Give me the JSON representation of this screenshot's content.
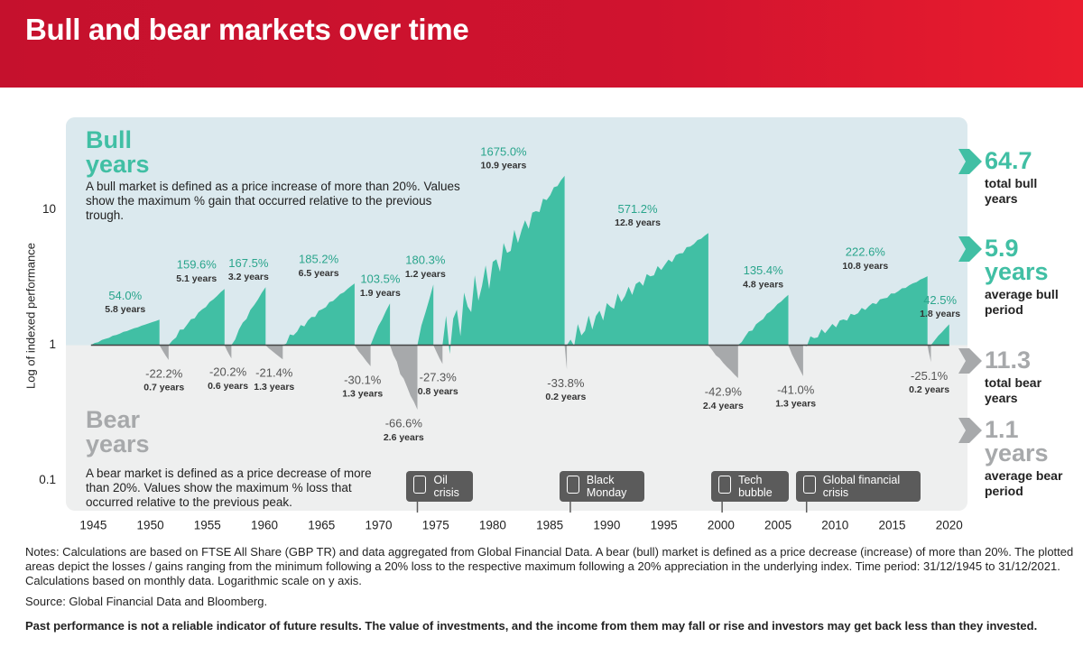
{
  "chart_data": {
    "type": "area",
    "title": "Bull and bear markets over time",
    "y_label": "Log of indexed performance",
    "log_scale": true,
    "xlim": [
      1942.6,
      2021.6
    ],
    "xticks": [
      1945,
      1950,
      1955,
      1960,
      1965,
      1970,
      1975,
      1980,
      1985,
      1990,
      1995,
      2000,
      2005,
      2010,
      2015,
      2020
    ],
    "ylim": [
      0.06,
      48
    ],
    "yticks": [
      0.1,
      1,
      10
    ],
    "series": [
      {
        "name": "Bull years",
        "color": "#41bfa4",
        "description": "A bull market is defined as a price increase of more than 20%. Values show the maximum % gain that occurred relative to the previous trough.",
        "values": [
          1.54,
          2.596,
          2.675,
          2.852,
          2.035,
          2.803,
          17.75,
          6.712,
          2.354,
          3.226,
          1.425
        ],
        "value_labels": [
          "54.0%",
          "159.6%",
          "167.5%",
          "185.2%",
          "103.5%",
          "180.3%",
          "1675.0%",
          "571.2%",
          "135.4%",
          "222.6%",
          "42.5%"
        ],
        "durations": [
          "5.8 years",
          "5.1 years",
          "3.2 years",
          "6.5 years",
          "1.9 years",
          "1.2 years",
          "10.9 years",
          "12.8 years",
          "4.8 years",
          "10.8 years",
          "1.8 years"
        ],
        "start": [
          1944.8,
          1951.6,
          1957.1,
          1961.6,
          1969.3,
          1973.4,
          1975.6,
          1986.5,
          2001.5,
          2007.2,
          2018.4
        ],
        "end": [
          1950.8,
          1956.5,
          1960.1,
          1967.9,
          1971.0,
          1974.8,
          1986.3,
          1998.9,
          2005.9,
          2018.1,
          2020.0
        ]
      },
      {
        "name": "Bear years",
        "color": "#a7a9ab",
        "description": "A bear market is defined as a price decrease of more than 20%. Values show the maximum % loss that occurred relative to the previous peak.",
        "values": [
          0.778,
          0.798,
          0.786,
          0.699,
          0.334,
          0.727,
          0.662,
          0.571,
          0.59,
          0.749
        ],
        "value_labels": [
          "-22.2%",
          "-20.2%",
          "-21.4%",
          "-30.1%",
          "-66.6%",
          "-27.3%",
          "-33.8%",
          "-42.9%",
          "-41.0%",
          "-25.1%"
        ],
        "durations": [
          "0.7 years",
          "0.6 years",
          "1.3 years",
          "1.3 years",
          "2.6 years",
          "0.8 years",
          "0.2 years",
          "2.4 years",
          "1.3 years",
          "0.2 years"
        ],
        "start": [
          1950.8,
          1956.5,
          1960.1,
          1967.9,
          1971.0,
          1974.8,
          1986.3,
          1998.9,
          2005.9,
          2018.1
        ],
        "end": [
          1951.6,
          1957.1,
          1961.6,
          1969.3,
          1973.4,
          1975.6,
          1986.5,
          2001.5,
          2007.2,
          2018.4
        ]
      }
    ],
    "events": [
      {
        "x": 1973.4,
        "label": "Oil crisis"
      },
      {
        "x": 1986.8,
        "label": "Black Monday"
      },
      {
        "x": 2000.1,
        "label": "Tech bubble"
      },
      {
        "x": 2007.5,
        "label": "Global financial crisis"
      }
    ],
    "summary": [
      {
        "number": 64.7,
        "text": "total bull years"
      },
      {
        "number": 5.9,
        "unit": "years",
        "text": "average bull period"
      },
      {
        "number": 11.3,
        "text": "total bear years"
      },
      {
        "number": 1.1,
        "unit": "years",
        "text": "average bear period"
      }
    ]
  },
  "notes": "Notes: Calculations are based on FTSE All Share (GBP TR) and data aggregated from Global Financial Data. A bear (bull) market is defined as a price decrease (increase) of more than 20%. The plotted areas depict the losses / gains ranging from the minimum following a 20% loss to the respective maximum following a 20% appreciation in the underlying index. Time period: 31/12/1945 to 31/12/2021. Calculations based on monthly data. Logarithmic scale on y axis.",
  "source": "Source: Global Financial Data and Bloomberg.",
  "disclaimer": "Past performance is not a reliable indicator of future results. The value of investments, and the income from them may fall or rise and investors may get back less than they invested."
}
